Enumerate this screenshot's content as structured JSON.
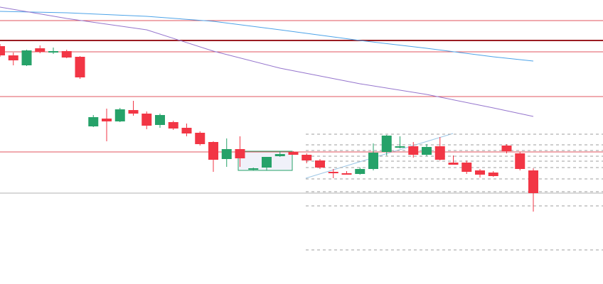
{
  "chart_data": {
    "type": "candlestick",
    "up_color": "#26a269",
    "down_color": "#f23645",
    "ylim": [
      0,
      400
    ],
    "open": [
      335,
      322,
      308,
      332,
      326,
      328,
      320,
      222,
      233,
      229,
      245,
      240,
      224,
      228,
      220,
      213,
      200,
      176,
      190,
      161,
      164,
      180,
      186,
      182,
      174,
      158,
      156,
      155,
      162,
      186,
      192,
      194,
      182,
      194,
      171,
      171,
      160,
      157,
      195,
      184,
      160
    ],
    "high": [
      338,
      326,
      330,
      336,
      333,
      330,
      321,
      238,
      247,
      248,
      258,
      243,
      240,
      230,
      226,
      215,
      201,
      205,
      208,
      164,
      178,
      187,
      187,
      184,
      176,
      162,
      159,
      164,
      198,
      210,
      208,
      200,
      197,
      207,
      181,
      174,
      162,
      159,
      197,
      186,
      163
    ],
    "low": [
      320,
      308,
      307,
      325,
      324,
      318,
      289,
      221,
      201,
      228,
      237,
      218,
      220,
      217,
      208,
      195,
      158,
      165,
      165,
      160,
      160,
      179,
      182,
      170,
      162,
      149,
      154,
      154,
      160,
      181,
      191,
      178,
      180,
      174,
      168,
      155,
      150,
      151,
      184,
      160,
      102
    ],
    "close": [
      322,
      315,
      329,
      327,
      328,
      319,
      291,
      235,
      229,
      246,
      240,
      223,
      238,
      219,
      212,
      197,
      175,
      190,
      177,
      163,
      179,
      183,
      182,
      174,
      164,
      156,
      154,
      162,
      185,
      209,
      194,
      182,
      193,
      175,
      168,
      158,
      154,
      152,
      187,
      162,
      128
    ],
    "levels": [
      {
        "value": 371,
        "color": "#e0565f",
        "width": 1
      },
      {
        "value": 343,
        "color": "#9b1c22",
        "width": 2
      },
      {
        "value": 327,
        "color": "#e0565f",
        "width": 1
      },
      {
        "value": 264,
        "color": "#e0565f",
        "width": 1
      },
      {
        "value": 186,
        "color": "#e0565f",
        "width": 1
      },
      {
        "value": 128,
        "color": "#b0b0b0",
        "width": 1
      }
    ],
    "series": [
      {
        "color": "#4da3e8",
        "x": [
          0,
          5,
          11,
          16,
          21,
          27,
          32,
          37,
          40
        ],
        "values": [
          384,
          382,
          377,
          370,
          358,
          343,
          332,
          320,
          314
        ]
      },
      {
        "color": "#9575cd",
        "x": [
          0,
          5,
          11,
          16,
          21,
          27,
          32,
          37,
          40
        ],
        "values": [
          390,
          374,
          358,
          328,
          304,
          282,
          267,
          248,
          236
        ]
      }
    ]
  }
}
